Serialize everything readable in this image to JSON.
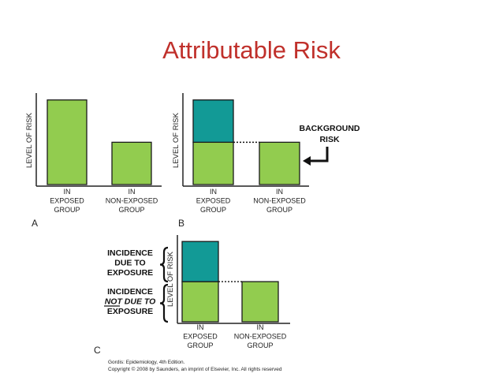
{
  "title": "Attributable Risk",
  "colors": {
    "green": "#92cc4f",
    "teal": "#129a96",
    "title": "#c0302b",
    "axis": "#222222"
  },
  "chart_data": [
    {
      "panel": "A",
      "type": "bar",
      "ylabel": "LEVEL OF RISK",
      "categories": [
        [
          "IN",
          "EXPOSED",
          "GROUP"
        ],
        [
          "IN",
          "NON-EXPOSED",
          "GROUP"
        ]
      ],
      "series": [
        {
          "values": [
            100,
            50
          ]
        }
      ],
      "ylim": [
        0,
        110
      ]
    },
    {
      "panel": "B",
      "type": "bar",
      "ylabel": "LEVEL OF RISK",
      "categories": [
        [
          "IN",
          "EXPOSED",
          "GROUP"
        ],
        [
          "IN",
          "NON-EXPOSED",
          "GROUP"
        ]
      ],
      "series": [
        {
          "values": [
            50,
            50
          ],
          "color": "#92cc4f"
        },
        {
          "values": [
            50,
            0
          ],
          "color": "#129a96"
        }
      ],
      "stacked": true,
      "ylim": [
        0,
        110
      ],
      "annotation": [
        "BACKGROUND",
        "RISK"
      ]
    },
    {
      "panel": "C",
      "type": "bar",
      "ylabel": "LEVEL OF RISK",
      "categories": [
        [
          "IN",
          "EXPOSED",
          "GROUP"
        ],
        [
          "IN",
          "NON-EXPOSED",
          "GROUP"
        ]
      ],
      "series": [
        {
          "values": [
            50,
            50
          ],
          "color": "#92cc4f"
        },
        {
          "values": [
            50,
            0
          ],
          "color": "#129a96"
        }
      ],
      "stacked": true,
      "ylim": [
        0,
        110
      ],
      "annotations": [
        [
          "INCIDENCE",
          "DUE TO",
          "EXPOSURE"
        ],
        [
          "INCIDENCE",
          "NOT DUE TO",
          "EXPOSURE"
        ]
      ]
    }
  ],
  "credit": {
    "line1": "Gordis: Epidemiology, 4th Edition.",
    "line2": "Copyright © 2008 by Saunders, an imprint of Elsevier, Inc. All rights reserved"
  }
}
